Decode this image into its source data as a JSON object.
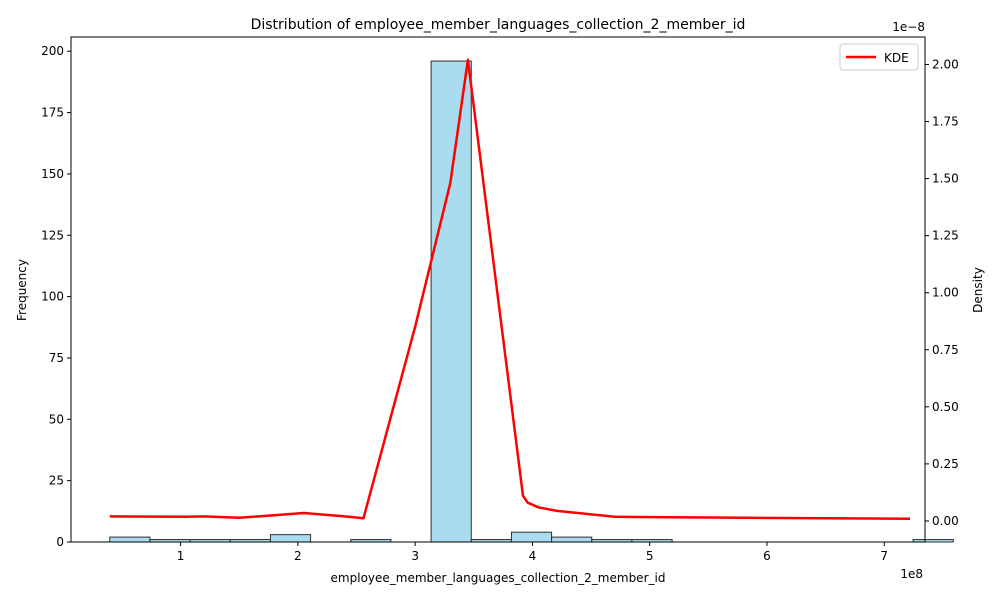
{
  "chart_data": {
    "type": "bar",
    "title": "Distribution of employee_member_languages_collection_2_member_id",
    "xlabel": "employee_member_languages_collection_2_member_id",
    "ylabel": "Frequency",
    "y2label": "Density",
    "x_offset_text": "1e8",
    "y2_offset_text": "1e−8",
    "xlim": [
      0.0655,
      7.3475
    ],
    "ylim": [
      0,
      205.8
    ],
    "y2lim": [
      -0.0922,
      2.1203
    ],
    "x_ticks": [
      1,
      2,
      3,
      4,
      5,
      6,
      7
    ],
    "y_ticks": [
      0,
      25,
      50,
      75,
      100,
      125,
      150,
      175,
      200
    ],
    "y2_ticks": [
      "0.00",
      "0.25",
      "0.50",
      "0.75",
      "1.00",
      "1.25",
      "1.50",
      "1.75",
      "2.00"
    ],
    "grid": false,
    "legend_position": "top-right",
    "bar_color": "#a8dcee",
    "bar_edge_color": "#2f2f2f",
    "kde_color": "#ff0000",
    "series": [
      {
        "kind": "histogram",
        "bin_start": 0.396,
        "bin_width": 0.3425,
        "values": [
          2,
          1,
          1,
          1,
          3,
          0,
          1,
          0,
          196,
          1,
          4,
          2,
          1,
          1,
          0,
          0,
          0,
          0,
          0,
          0,
          1
        ]
      },
      {
        "kind": "line",
        "name": "KDE",
        "x": [
          0.396,
          1.05,
          1.2,
          1.5,
          2.05,
          2.4,
          2.56,
          3.0,
          3.3,
          3.45,
          3.92,
          3.96,
          4.05,
          4.2,
          4.7,
          5.5,
          6.5,
          7.22
        ],
        "y": [
          0.02,
          0.018,
          0.02,
          0.014,
          0.035,
          0.02,
          0.012,
          0.85,
          1.48,
          2.02,
          0.11,
          0.08,
          0.06,
          0.045,
          0.018,
          0.015,
          0.012,
          0.01
        ]
      }
    ]
  }
}
